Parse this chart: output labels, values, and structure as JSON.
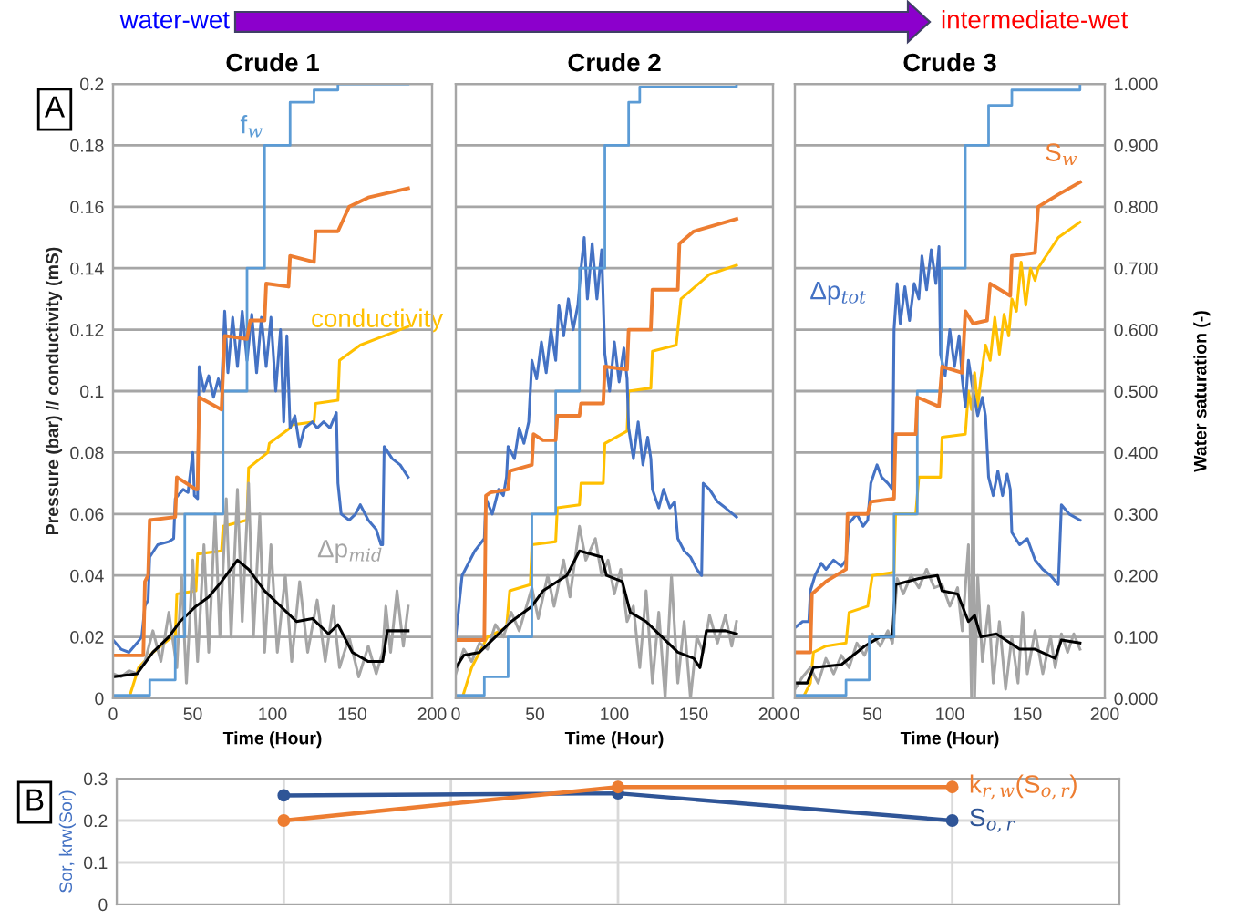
{
  "chart_data": [
    {
      "type": "line",
      "title": "Crude 1",
      "xlabel": "Time (Hour)",
      "ylabel": "Pressure (bar) // conductivity (mS)",
      "xlim": [
        0,
        200
      ],
      "xticks": [
        0,
        50,
        100,
        150,
        200
      ],
      "ylim": [
        0,
        0.2
      ],
      "yticks": [
        0,
        0.02,
        0.04,
        0.06,
        0.08,
        0.1,
        0.12,
        0.14,
        0.16,
        0.18,
        0.2
      ],
      "y2lim": [
        0,
        1
      ],
      "grid": "y",
      "tick_labels": [
        "x",
        "y"
      ],
      "annotations": [
        "A",
        "water-wet",
        "intermediate-wet"
      ],
      "series": [
        {
          "name": "f$_{w}$",
          "color": "#5b9bd5",
          "type": "step",
          "axis": "y2",
          "x": [
            0,
            23,
            39,
            45,
            69,
            84,
            95,
            111,
            126,
            141,
            185
          ],
          "values": [
            0.005,
            0.03,
            0.1,
            0.3,
            0.5,
            0.7,
            0.9,
            0.97,
            0.99,
            1.0,
            1.0
          ]
        },
        {
          "color": "#ed7d31",
          "axis": "y2",
          "x": [
            0,
            19,
            20,
            22,
            23,
            39,
            40,
            52,
            53,
            54,
            68,
            70,
            84,
            86,
            95,
            96,
            110,
            111,
            126,
            127,
            141,
            148,
            160,
            185
          ],
          "values": [
            0.07,
            0.07,
            0.19,
            0.2,
            0.29,
            0.295,
            0.36,
            0.34,
            0.34,
            0.49,
            0.47,
            0.59,
            0.585,
            0.615,
            0.615,
            0.675,
            0.67,
            0.72,
            0.71,
            0.76,
            0.76,
            0.8,
            0.815,
            0.83
          ]
        },
        {
          "name": "conductivity",
          "color": "#ffc000",
          "x": [
            0,
            10,
            16,
            25,
            37,
            39,
            40,
            52,
            53,
            68,
            69,
            84,
            85,
            97,
            98,
            111,
            112,
            126,
            127,
            141,
            142,
            155,
            170,
            185
          ],
          "values": [
            0,
            0,
            0.01,
            0.015,
            0.02,
            0.02,
            0.034,
            0.035,
            0.047,
            0.048,
            0.056,
            0.058,
            0.075,
            0.08,
            0.083,
            0.088,
            0.089,
            0.09,
            0.096,
            0.097,
            0.11,
            0.115,
            0.118,
            0.121
          ]
        },
        {
          "color": "#4472c4",
          "x": [
            0,
            5,
            10,
            15,
            18,
            20,
            22,
            23,
            28,
            35,
            38,
            39,
            44,
            47,
            50,
            51,
            53,
            54,
            57,
            60,
            63,
            66,
            68,
            70,
            72,
            75,
            78,
            81,
            84,
            87,
            90,
            93,
            96,
            99,
            102,
            105,
            107,
            109,
            111,
            114,
            117,
            120,
            125,
            128,
            132,
            136,
            140,
            141,
            143,
            148,
            152,
            155,
            160,
            165,
            168,
            169,
            170,
            175,
            180,
            185
          ],
          "values": [
            0.019,
            0.016,
            0.015,
            0.018,
            0.02,
            0.03,
            0.032,
            0.046,
            0.05,
            0.051,
            0.052,
            0.065,
            0.068,
            0.067,
            0.08,
            0.066,
            0.065,
            0.108,
            0.1,
            0.105,
            0.098,
            0.104,
            0.1,
            0.126,
            0.106,
            0.124,
            0.108,
            0.126,
            0.11,
            0.125,
            0.106,
            0.124,
            0.108,
            0.124,
            0.1,
            0.12,
            0.09,
            0.118,
            0.088,
            0.092,
            0.082,
            0.088,
            0.09,
            0.088,
            0.09,
            0.088,
            0.093,
            0.07,
            0.06,
            0.058,
            0.06,
            0.063,
            0.058,
            0.055,
            0.05,
            0.05,
            0.082,
            0.078,
            0.076,
            0.072
          ]
        },
        {
          "name": "Δp$_{mid}$",
          "color": "#a5a5a5",
          "x": [
            0,
            5,
            10,
            15,
            20,
            25,
            30,
            35,
            40,
            43,
            46,
            50,
            53,
            57,
            60,
            64,
            67,
            71,
            74,
            78,
            81,
            85,
            88,
            92,
            95,
            99,
            103,
            108,
            112,
            117,
            122,
            128,
            133,
            138,
            142,
            148,
            154,
            160,
            165,
            169,
            171,
            174,
            178,
            182,
            185
          ],
          "values": [
            0.008,
            0.007,
            0.009,
            0.008,
            0.012,
            0.022,
            0.012,
            0.028,
            0.01,
            0.04,
            0.005,
            0.045,
            0.012,
            0.05,
            0.015,
            0.06,
            0.02,
            0.065,
            0.02,
            0.068,
            0.025,
            0.07,
            0.02,
            0.06,
            0.015,
            0.05,
            0.015,
            0.04,
            0.012,
            0.038,
            0.015,
            0.032,
            0.012,
            0.03,
            0.01,
            0.02,
            0.007,
            0.017,
            0.008,
            0.015,
            0.03,
            0.015,
            0.035,
            0.017,
            0.03
          ]
        },
        {
          "color": "#000000",
          "x": [
            0,
            15,
            25,
            35,
            42,
            52,
            60,
            68,
            78,
            85,
            95,
            105,
            115,
            125,
            135,
            141,
            150,
            160,
            169,
            172,
            185
          ],
          "values": [
            0.007,
            0.008,
            0.015,
            0.02,
            0.025,
            0.03,
            0.033,
            0.038,
            0.045,
            0.042,
            0.035,
            0.03,
            0.025,
            0.026,
            0.021,
            0.024,
            0.015,
            0.012,
            0.012,
            0.022,
            0.022
          ]
        }
      ]
    },
    {
      "type": "line",
      "title": "Crude 2",
      "xlabel": "Time (Hour)",
      "xlim": [
        0,
        200
      ],
      "xticks": [
        0,
        50,
        100,
        150,
        200
      ],
      "ylim": [
        0,
        0.2
      ],
      "y2lim": [
        0,
        1
      ],
      "grid": "y",
      "tick_labels": [
        "x"
      ],
      "series": [
        {
          "color": "#5b9bd5",
          "type": "step",
          "axis": "y2",
          "x": [
            0,
            18,
            33,
            48,
            63,
            78,
            94,
            109,
            116,
            177
          ],
          "values": [
            0.005,
            0.035,
            0.1,
            0.3,
            0.5,
            0.7,
            0.9,
            0.97,
            0.995,
            1.0
          ]
        },
        {
          "color": "#ed7d31",
          "axis": "y2",
          "x": [
            0,
            18,
            19,
            22,
            33,
            34,
            48,
            49,
            55,
            63,
            64,
            78,
            79,
            93,
            94,
            108,
            109,
            123,
            124,
            140,
            141,
            150,
            177
          ],
          "values": [
            0.095,
            0.095,
            0.33,
            0.335,
            0.34,
            0.37,
            0.38,
            0.43,
            0.42,
            0.42,
            0.46,
            0.46,
            0.48,
            0.48,
            0.54,
            0.535,
            0.6,
            0.6,
            0.665,
            0.665,
            0.74,
            0.76,
            0.78
          ]
        },
        {
          "color": "#ffc000",
          "x": [
            0,
            4,
            10,
            20,
            32,
            34,
            47,
            48,
            63,
            64,
            78,
            79,
            93,
            94,
            108,
            109,
            123,
            124,
            139,
            142,
            160,
            177
          ],
          "values": [
            0,
            0,
            0.01,
            0.02,
            0.023,
            0.035,
            0.037,
            0.05,
            0.051,
            0.062,
            0.063,
            0.07,
            0.07,
            0.083,
            0.087,
            0.1,
            0.101,
            0.113,
            0.115,
            0.13,
            0.138,
            0.141
          ]
        },
        {
          "color": "#4472c4",
          "x": [
            0,
            2,
            4,
            8,
            12,
            15,
            18,
            19,
            23,
            27,
            30,
            32,
            33,
            37,
            40,
            43,
            46,
            48,
            51,
            54,
            57,
            60,
            63,
            65,
            68,
            71,
            74,
            77,
            79,
            81,
            83,
            86,
            89,
            92,
            94,
            97,
            100,
            103,
            106,
            108,
            109,
            112,
            115,
            118,
            121,
            123,
            124,
            128,
            131,
            135,
            138,
            140,
            144,
            148,
            152,
            155,
            156,
            160,
            165,
            170,
            177
          ],
          "values": [
            0.02,
            0.03,
            0.04,
            0.044,
            0.048,
            0.05,
            0.052,
            0.065,
            0.06,
            0.068,
            0.066,
            0.072,
            0.082,
            0.078,
            0.088,
            0.083,
            0.09,
            0.11,
            0.104,
            0.116,
            0.106,
            0.12,
            0.11,
            0.128,
            0.118,
            0.13,
            0.12,
            0.128,
            0.14,
            0.15,
            0.13,
            0.148,
            0.13,
            0.146,
            0.112,
            0.1,
            0.116,
            0.103,
            0.114,
            0.104,
            0.088,
            0.078,
            0.09,
            0.076,
            0.085,
            0.078,
            0.068,
            0.062,
            0.068,
            0.062,
            0.064,
            0.052,
            0.048,
            0.046,
            0.042,
            0.04,
            0.07,
            0.068,
            0.064,
            0.062,
            0.059
          ]
        },
        {
          "color": "#a5a5a5",
          "x": [
            0,
            5,
            10,
            15,
            20,
            25,
            30,
            35,
            40,
            48,
            52,
            58,
            62,
            68,
            72,
            78,
            82,
            88,
            92,
            96,
            100,
            104,
            108,
            112,
            116,
            120,
            124,
            128,
            132,
            136,
            140,
            144,
            148,
            152,
            156,
            160,
            165,
            170,
            174,
            177
          ],
          "values": [
            0.008,
            0.016,
            0.012,
            0.018,
            0.016,
            0.024,
            0.02,
            0.028,
            0.022,
            0.036,
            0.026,
            0.04,
            0.03,
            0.045,
            0.033,
            0.056,
            0.045,
            0.052,
            0.04,
            0.045,
            0.034,
            0.042,
            0.025,
            0.03,
            0.01,
            0.035,
            0.005,
            0.028,
            0.0,
            0.04,
            0.005,
            0.025,
            0.0,
            0.02,
            0.015,
            0.027,
            0.018,
            0.027,
            0.017,
            0.025
          ]
        },
        {
          "color": "#000000",
          "x": [
            0,
            5,
            15,
            25,
            35,
            48,
            55,
            70,
            78,
            92,
            95,
            105,
            110,
            120,
            130,
            140,
            150,
            154,
            158,
            170,
            177
          ],
          "values": [
            0.01,
            0.014,
            0.015,
            0.02,
            0.025,
            0.03,
            0.035,
            0.04,
            0.048,
            0.046,
            0.04,
            0.038,
            0.028,
            0.025,
            0.02,
            0.015,
            0.013,
            0.01,
            0.022,
            0.022,
            0.021
          ]
        }
      ]
    },
    {
      "type": "line",
      "title": "Crude 3",
      "xlabel": "Time (Hour)",
      "y2label": "Water saturation (-)",
      "xlim": [
        0,
        200
      ],
      "xticks": [
        0,
        50,
        100,
        150,
        200
      ],
      "ylim": [
        0,
        0.2
      ],
      "y2lim": [
        0,
        1
      ],
      "y2ticks": [
        {
          "value": 0,
          "label": "0.000"
        },
        {
          "value": 0.1,
          "label": "0.100"
        },
        {
          "value": 0.2,
          "label": "0.200"
        },
        {
          "value": 0.3,
          "label": "0.300"
        },
        {
          "value": 0.4,
          "label": "0.400"
        },
        {
          "value": 0.5,
          "label": "0.500"
        },
        {
          "value": 0.6,
          "label": "0.600"
        },
        {
          "value": 0.7,
          "label": "0.700"
        },
        {
          "value": 0.8,
          "label": "0.800"
        },
        {
          "value": 0.9,
          "label": "0.900"
        },
        {
          "value": 1,
          "label": "1.000"
        }
      ],
      "grid": "y",
      "tick_labels": [
        "x",
        "y2"
      ],
      "series": [
        {
          "color": "#5b9bd5",
          "type": "step",
          "axis": "y2",
          "x": [
            0,
            33,
            48,
            64,
            79,
            95,
            110,
            125,
            140,
            184
          ],
          "values": [
            0.005,
            0.03,
            0.1,
            0.3,
            0.5,
            0.7,
            0.9,
            0.965,
            0.99,
            1.0
          ]
        },
        {
          "name": "S$_{w}$",
          "color": "#ed7d31",
          "axis": "y2",
          "x": [
            0,
            10,
            11,
            20,
            33,
            34,
            47,
            49,
            64,
            65,
            78,
            79,
            93,
            95,
            108,
            110,
            115,
            124,
            126,
            139,
            140,
            155,
            157,
            170,
            184
          ],
          "values": [
            0.075,
            0.075,
            0.17,
            0.19,
            0.21,
            0.3,
            0.3,
            0.32,
            0.325,
            0.43,
            0.43,
            0.49,
            0.475,
            0.54,
            0.53,
            0.63,
            0.61,
            0.615,
            0.675,
            0.655,
            0.72,
            0.725,
            0.8,
            0.82,
            0.84
          ]
        },
        {
          "color": "#ffc000",
          "x": [
            0,
            5,
            10,
            12,
            20,
            33,
            35,
            47,
            50,
            64,
            65,
            78,
            80,
            94,
            95,
            110,
            112,
            114,
            116,
            118,
            120,
            123,
            126,
            129,
            132,
            135,
            138,
            140,
            143,
            146,
            149,
            152,
            155,
            157,
            170,
            184
          ],
          "values": [
            0,
            0,
            0.005,
            0.015,
            0.017,
            0.018,
            0.028,
            0.03,
            0.04,
            0.041,
            0.06,
            0.06,
            0.072,
            0.072,
            0.085,
            0.086,
            0.1,
            0.094,
            0.106,
            0.095,
            0.104,
            0.115,
            0.11,
            0.124,
            0.112,
            0.125,
            0.118,
            0.13,
            0.126,
            0.142,
            0.128,
            0.14,
            0.136,
            0.14,
            0.15,
            0.155
          ]
        },
        {
          "name": "Δp$_{tot}$",
          "color": "#4472c4",
          "x": [
            0,
            5,
            9,
            10,
            13,
            17,
            20,
            25,
            30,
            33,
            35,
            40,
            44,
            47,
            49,
            53,
            56,
            60,
            63,
            64,
            66,
            68,
            71,
            74,
            77,
            80,
            82,
            85,
            88,
            91,
            93,
            94,
            97,
            100,
            103,
            106,
            108,
            110,
            112,
            115,
            118,
            121,
            123,
            125,
            128,
            131,
            134,
            137,
            139,
            140,
            145,
            150,
            155,
            160,
            165,
            170,
            172,
            177,
            184
          ],
          "values": [
            0.023,
            0.025,
            0.025,
            0.035,
            0.04,
            0.044,
            0.042,
            0.045,
            0.043,
            0.045,
            0.057,
            0.06,
            0.056,
            0.058,
            0.07,
            0.076,
            0.072,
            0.07,
            0.068,
            0.12,
            0.135,
            0.122,
            0.134,
            0.123,
            0.135,
            0.13,
            0.144,
            0.133,
            0.146,
            0.135,
            0.147,
            0.112,
            0.105,
            0.12,
            0.108,
            0.118,
            0.104,
            0.095,
            0.11,
            0.1,
            0.092,
            0.098,
            0.092,
            0.072,
            0.066,
            0.074,
            0.066,
            0.073,
            0.068,
            0.054,
            0.05,
            0.052,
            0.045,
            0.042,
            0.04,
            0.037,
            0.063,
            0.06,
            0.058
          ]
        },
        {
          "color": "#a5a5a5",
          "x": [
            0,
            5,
            10,
            15,
            20,
            25,
            30,
            35,
            40,
            45,
            50,
            55,
            60,
            63,
            66,
            70,
            75,
            80,
            85,
            90,
            95,
            100,
            105,
            108,
            112,
            114,
            115,
            116,
            118,
            121,
            125,
            128,
            132,
            136,
            140,
            144,
            147,
            150,
            155,
            160,
            165,
            168,
            172,
            176,
            180,
            184
          ],
          "values": [
            0.003,
            0.007,
            0.01,
            0.005,
            0.013,
            0.008,
            0.014,
            0.01,
            0.018,
            0.014,
            0.021,
            0.017,
            0.022,
            0.018,
            0.039,
            0.034,
            0.04,
            0.036,
            0.042,
            0.036,
            0.037,
            0.03,
            0.036,
            0.022,
            0.05,
            0.0,
            0.105,
            0.0,
            0.04,
            0.012,
            0.03,
            0.005,
            0.025,
            0.003,
            0.02,
            0.005,
            0.028,
            0.008,
            0.022,
            0.008,
            0.02,
            0.01,
            0.021,
            0.015,
            0.021,
            0.016
          ]
        },
        {
          "color": "#000000",
          "x": [
            0,
            8,
            12,
            30,
            35,
            45,
            55,
            63,
            65,
            80,
            92,
            95,
            105,
            112,
            116,
            120,
            130,
            145,
            155,
            168,
            172,
            184
          ],
          "values": [
            0.005,
            0.005,
            0.01,
            0.011,
            0.013,
            0.017,
            0.02,
            0.02,
            0.037,
            0.039,
            0.04,
            0.035,
            0.034,
            0.025,
            0.027,
            0.02,
            0.021,
            0.016,
            0.016,
            0.013,
            0.019,
            0.018
          ]
        }
      ]
    },
    {
      "type": "line",
      "ylabel": "Sor, krw(Sor)",
      "categories": [
        null,
        null,
        null
      ],
      "ylim": [
        0,
        0.3
      ],
      "yticks": [
        0,
        0.1,
        0.2,
        0.3
      ],
      "grid": true,
      "marker": "circle",
      "tick_labels": [
        "y"
      ],
      "annotations": [
        "B"
      ],
      "series": [
        {
          "name": "S$_{o,r}$",
          "color": "#2f5597",
          "values": [
            0.26,
            0.265,
            0.2
          ]
        },
        {
          "name": "k$_{r,w}$(S$_{o,r}$)",
          "color": "#ed7d31",
          "values": [
            0.2,
            0.28,
            0.28
          ]
        }
      ]
    }
  ]
}
